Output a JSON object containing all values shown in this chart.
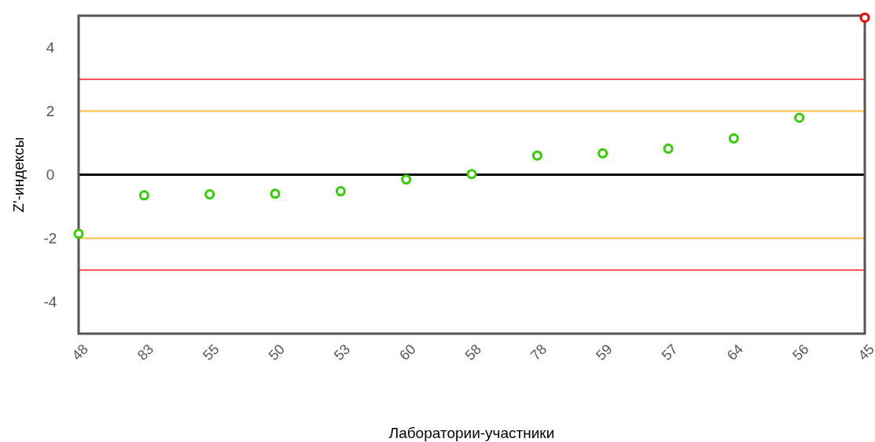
{
  "chart_data": {
    "type": "scatter",
    "xlabel": "Лаборатории-участники",
    "ylabel": "Z'-индексы",
    "categories": [
      "48",
      "83",
      "55",
      "50",
      "53",
      "60",
      "58",
      "78",
      "59",
      "57",
      "64",
      "56",
      "45"
    ],
    "values": [
      -1.86,
      -0.65,
      -0.62,
      -0.6,
      -0.52,
      -0.15,
      0.02,
      0.6,
      0.67,
      0.82,
      1.14,
      1.79,
      4.94
    ],
    "colors": [
      "#33cc00",
      "#33cc00",
      "#33cc00",
      "#33cc00",
      "#33cc00",
      "#33cc00",
      "#33cc00",
      "#33cc00",
      "#33cc00",
      "#33cc00",
      "#33cc00",
      "#33cc00",
      "#ee0000"
    ],
    "marker": "circle",
    "ylim": [
      -5,
      5
    ],
    "yticks": [
      -4,
      -2,
      0,
      2,
      4
    ],
    "grid": false,
    "ref_lines": [
      {
        "axis": "y",
        "value": 3,
        "color": "#ff5555"
      },
      {
        "axis": "y",
        "value": 2,
        "color": "#ffbb44"
      },
      {
        "axis": "y",
        "value": 0,
        "color": "#000000"
      },
      {
        "axis": "y",
        "value": -2,
        "color": "#ffbb44"
      },
      {
        "axis": "y",
        "value": -3,
        "color": "#ff5555"
      }
    ]
  }
}
